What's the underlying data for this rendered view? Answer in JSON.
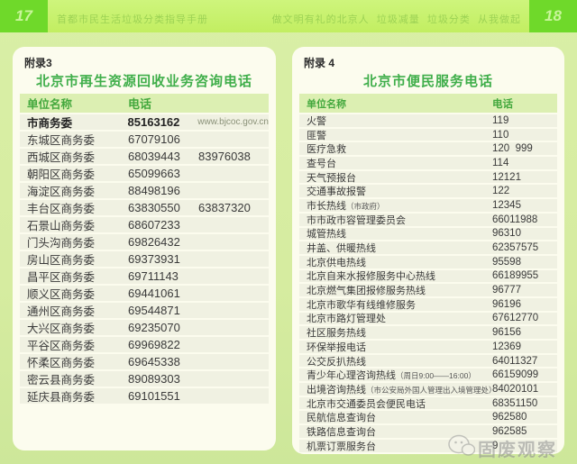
{
  "page": {
    "left_page_number": "17",
    "right_page_number": "18",
    "left_header_text": "首都市民生活垃圾分类指导手册",
    "right_header_text": "做文明有礼的北京人  垃圾减量  垃圾分类  从我做起"
  },
  "colors": {
    "page_background": "#d6eca0",
    "top_bar": "#c6f06c",
    "page_number_box": "#6fd92a",
    "card_background": "#fcfcee",
    "table_header_band": "#dcefb2",
    "accent_green": "#3fae4a",
    "row_band": "#f0f1e2"
  },
  "left_panel": {
    "appendix_label": "附录3",
    "title": "北京市再生资源回收业务咨询电话",
    "columns": {
      "name": "单位名称",
      "phone": "电话"
    },
    "rows": [
      {
        "name": "市商务委",
        "phone": "85163162",
        "url": "www.bjcoc.gov.cn",
        "bold": true
      },
      {
        "name": "东城区商务委",
        "phone": "67079106"
      },
      {
        "name": "西城区商务委",
        "phone": "68039443",
        "phone2": "83976038"
      },
      {
        "name": "朝阳区商务委",
        "phone": "65099663"
      },
      {
        "name": "海淀区商务委",
        "phone": "88498196"
      },
      {
        "name": "丰台区商务委",
        "phone": "63830550",
        "phone2": "63837320"
      },
      {
        "name": "石景山商务委",
        "phone": "68607233"
      },
      {
        "name": "门头沟商务委",
        "phone": "69826432"
      },
      {
        "name": "房山区商务委",
        "phone": "69373931"
      },
      {
        "name": "昌平区商务委",
        "phone": "69711143"
      },
      {
        "name": "顺义区商务委",
        "phone": "69441061"
      },
      {
        "name": "通州区商务委",
        "phone": "69544871"
      },
      {
        "name": "大兴区商务委",
        "phone": "69235070"
      },
      {
        "name": "平谷区商务委",
        "phone": "69969822"
      },
      {
        "name": "怀柔区商务委",
        "phone": "69645338"
      },
      {
        "name": "密云县商务委",
        "phone": "89089303"
      },
      {
        "name": "延庆县商务委",
        "phone": "69101551"
      }
    ]
  },
  "right_panel": {
    "appendix_label": "附录 4",
    "title": "北京市便民服务电话",
    "columns": {
      "name": "单位名称",
      "phone": "电话"
    },
    "rows": [
      {
        "name": "火警",
        "phone": "119"
      },
      {
        "name": "匪警",
        "phone": "110"
      },
      {
        "name": "医疗急救",
        "phone": "120  999"
      },
      {
        "name": "查号台",
        "phone": "114"
      },
      {
        "name": "天气预报台",
        "phone": "12121"
      },
      {
        "name": "交通事故报警",
        "phone": "122"
      },
      {
        "name": "市长热线",
        "note": "（市政府）",
        "phone": "12345"
      },
      {
        "name": "市市政市容管理委员会",
        "phone": "66011988"
      },
      {
        "name": "城管热线",
        "phone": "96310"
      },
      {
        "name": "井盖、供暖热线",
        "phone": "62357575"
      },
      {
        "name": "北京供电热线",
        "phone": "95598"
      },
      {
        "name": "北京自来水报修服务中心热线",
        "phone": "66189955"
      },
      {
        "name": "北京燃气集团报修服务热线",
        "phone": "96777"
      },
      {
        "name": "北京市歌华有线维修服务",
        "phone": "96196"
      },
      {
        "name": "北京市路灯管理处",
        "phone": "67612770"
      },
      {
        "name": "社区服务热线",
        "phone": "96156"
      },
      {
        "name": "环保举报电话",
        "phone": "12369"
      },
      {
        "name": "公交反扒热线",
        "phone": "64011327"
      },
      {
        "name": "青少年心理咨询热线",
        "note": "（周日9:00——16:00）",
        "phone": "66159099"
      },
      {
        "name": "出境咨询热线",
        "note": "（市公安局外国人管理出入境管理处）",
        "phone": "84020101"
      },
      {
        "name": "北京市交通委员会便民电话",
        "phone": "68351150"
      },
      {
        "name": "民航信息查询台",
        "phone": "962580"
      },
      {
        "name": "铁路信息查询台",
        "phone": "962585"
      },
      {
        "name": "机票订票服务台",
        "phone": "9"
      }
    ]
  },
  "watermark": {
    "icon": "wechat-icon",
    "text": "固废观察"
  }
}
